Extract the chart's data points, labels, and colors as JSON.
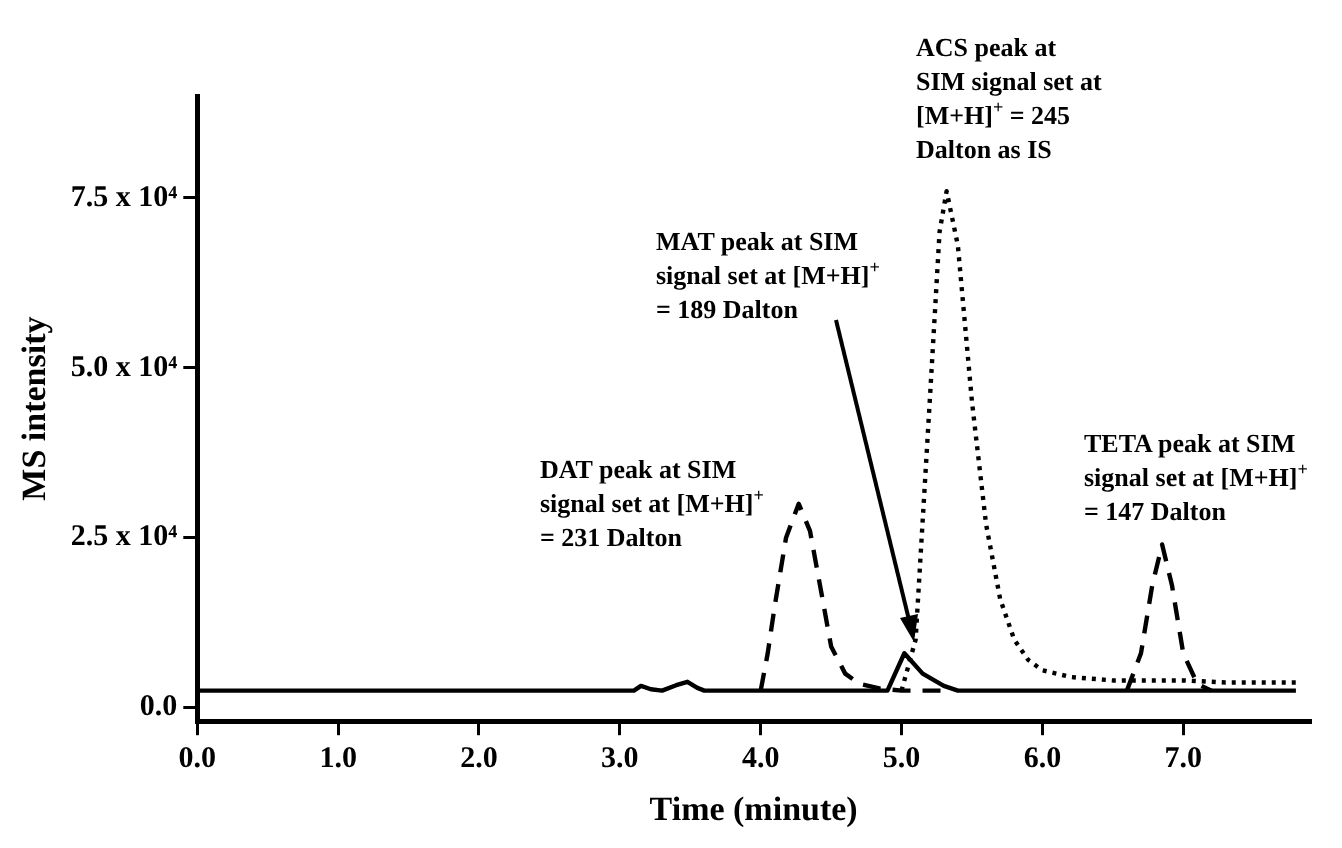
{
  "chart_data": {
    "type": "line",
    "xlabel": "Time (minute)",
    "ylabel": "MS intensity",
    "marker": "none",
    "xlim": [
      0,
      7.9
    ],
    "ylim": [
      -2000,
      90000
    ],
    "xticks": [
      {
        "value": 0,
        "label": "0.0"
      },
      {
        "value": 1,
        "label": "1.0"
      },
      {
        "value": 2,
        "label": "2.0"
      },
      {
        "value": 3,
        "label": "3.0"
      },
      {
        "value": 4,
        "label": "4.0"
      },
      {
        "value": 5,
        "label": "5.0"
      },
      {
        "value": 6,
        "label": "6.0"
      },
      {
        "value": 7,
        "label": "7.0"
      }
    ],
    "yticks": [
      {
        "value": 0,
        "label": "0.0"
      },
      {
        "value": 25000,
        "label": "2.5 x 10⁴"
      },
      {
        "value": 50000,
        "label": "5.0 x 10⁴"
      },
      {
        "value": 75000,
        "label": "7.5 x 10⁴"
      }
    ],
    "series": [
      {
        "color": "#000000",
        "line_style": "solid",
        "x": [
          0,
          0,
          0.05,
          3.1,
          3.15,
          3.22,
          3.3,
          3.4,
          3.48,
          3.55,
          3.6,
          4.9,
          5.02,
          5.15,
          5.3,
          5.4,
          7.8
        ],
        "values": [
          9000,
          2500,
          2500,
          2500,
          3200,
          2700,
          2500,
          3300,
          3800,
          2900,
          2500,
          2500,
          8000,
          5000,
          3200,
          2500,
          2500
        ]
      },
      {
        "color": "#000000",
        "line_style": "dashed",
        "x": [
          4.0,
          4.05,
          4.1,
          4.18,
          4.27,
          4.35,
          4.43,
          4.5,
          4.6,
          4.7,
          4.85,
          5.0,
          5.3
        ],
        "values": [
          2500,
          8000,
          15000,
          25000,
          30000,
          26000,
          17000,
          9000,
          5000,
          3500,
          2800,
          2500,
          2500
        ]
      },
      {
        "color": "#000000",
        "line_style": "dotted",
        "x": [
          5.0,
          5.1,
          5.2,
          5.27,
          5.32,
          5.4,
          5.5,
          5.6,
          5.7,
          5.8,
          5.9,
          6.0,
          6.2,
          6.5,
          7.0,
          7.3,
          7.8
        ],
        "values": [
          2500,
          10000,
          45000,
          70000,
          76000,
          68000,
          45000,
          27000,
          16000,
          10000,
          7000,
          5500,
          4500,
          4000,
          4000,
          3700,
          3700
        ]
      },
      {
        "color": "#000000",
        "line_style": "dashed",
        "x": [
          6.6,
          6.7,
          6.78,
          6.85,
          6.92,
          7.0,
          7.1,
          7.2
        ],
        "values": [
          2500,
          8000,
          18000,
          24000,
          18000,
          8000,
          3500,
          2500
        ]
      }
    ],
    "annotations": [
      "DAT peak at SIM\nsignal set at [M+H]$^{+}$\n= 231 Dalton",
      "MAT peak at SIM\nsignal set at [M+H]$^{+}$\n= 189 Dalton",
      "ACS peak at\nSIM signal set at\n[M+H]$^{+}$ = 245\nDalton as IS",
      "TETA peak at SIM\nsignal set at [M+H]$^{+}$\n= 147 Dalton"
    ]
  }
}
